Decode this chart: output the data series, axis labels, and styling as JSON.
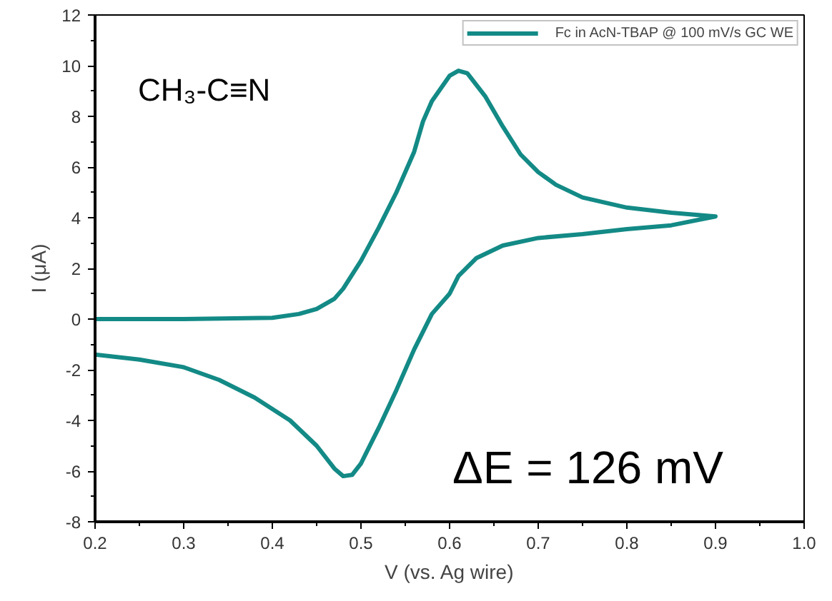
{
  "chart_data": {
    "type": "line",
    "xlabel": "V (vs. Ag wire)",
    "ylabel": "I (μA)",
    "xlim": [
      0.2,
      1.0
    ],
    "xticks": [
      0.2,
      0.3,
      0.4,
      0.5,
      0.6,
      0.7,
      0.8,
      0.9,
      {
        "value": 1,
        "label": "1.0"
      }
    ],
    "ylim": [
      -8,
      12
    ],
    "yticks": [
      -8,
      -6,
      -4,
      -2,
      0,
      2,
      4,
      6,
      8,
      10,
      12
    ],
    "grid": false,
    "legend": "top right",
    "marker": "none",
    "line_style": "solid",
    "annotations": [
      "CH₃-C≡N",
      "ΔE = 126 mV"
    ],
    "series": [
      {
        "name": "Fc in AcN-TBAP @ 100 mV/s GC WE",
        "color": "#138a86",
        "x": [
          0.2,
          0.3,
          0.4,
          0.43,
          0.45,
          0.47,
          0.48,
          0.5,
          0.52,
          0.54,
          0.56,
          0.57,
          0.58,
          0.6,
          0.61,
          0.62,
          0.64,
          0.66,
          0.68,
          0.7,
          0.72,
          0.75,
          0.8,
          0.85,
          0.9,
          0.85,
          0.8,
          0.75,
          0.7,
          0.66,
          0.63,
          0.61,
          0.6,
          0.58,
          0.56,
          0.54,
          0.52,
          0.5,
          0.49,
          0.48,
          0.47,
          0.45,
          0.42,
          0.38,
          0.34,
          0.3,
          0.25,
          0.2
        ],
        "values": [
          0,
          0,
          0.05,
          0.2,
          0.4,
          0.8,
          1.2,
          2.3,
          3.6,
          5.0,
          6.6,
          7.8,
          8.6,
          9.6,
          9.8,
          9.7,
          8.8,
          7.6,
          6.5,
          5.8,
          5.3,
          4.8,
          4.4,
          4.2,
          4.05,
          3.7,
          3.55,
          3.35,
          3.2,
          2.9,
          2.4,
          1.7,
          1.0,
          0.2,
          -1.2,
          -2.8,
          -4.3,
          -5.7,
          -6.15,
          -6.2,
          -5.9,
          -5.0,
          -4.0,
          -3.1,
          -2.4,
          -1.9,
          -1.6,
          -1.4
        ]
      }
    ]
  }
}
